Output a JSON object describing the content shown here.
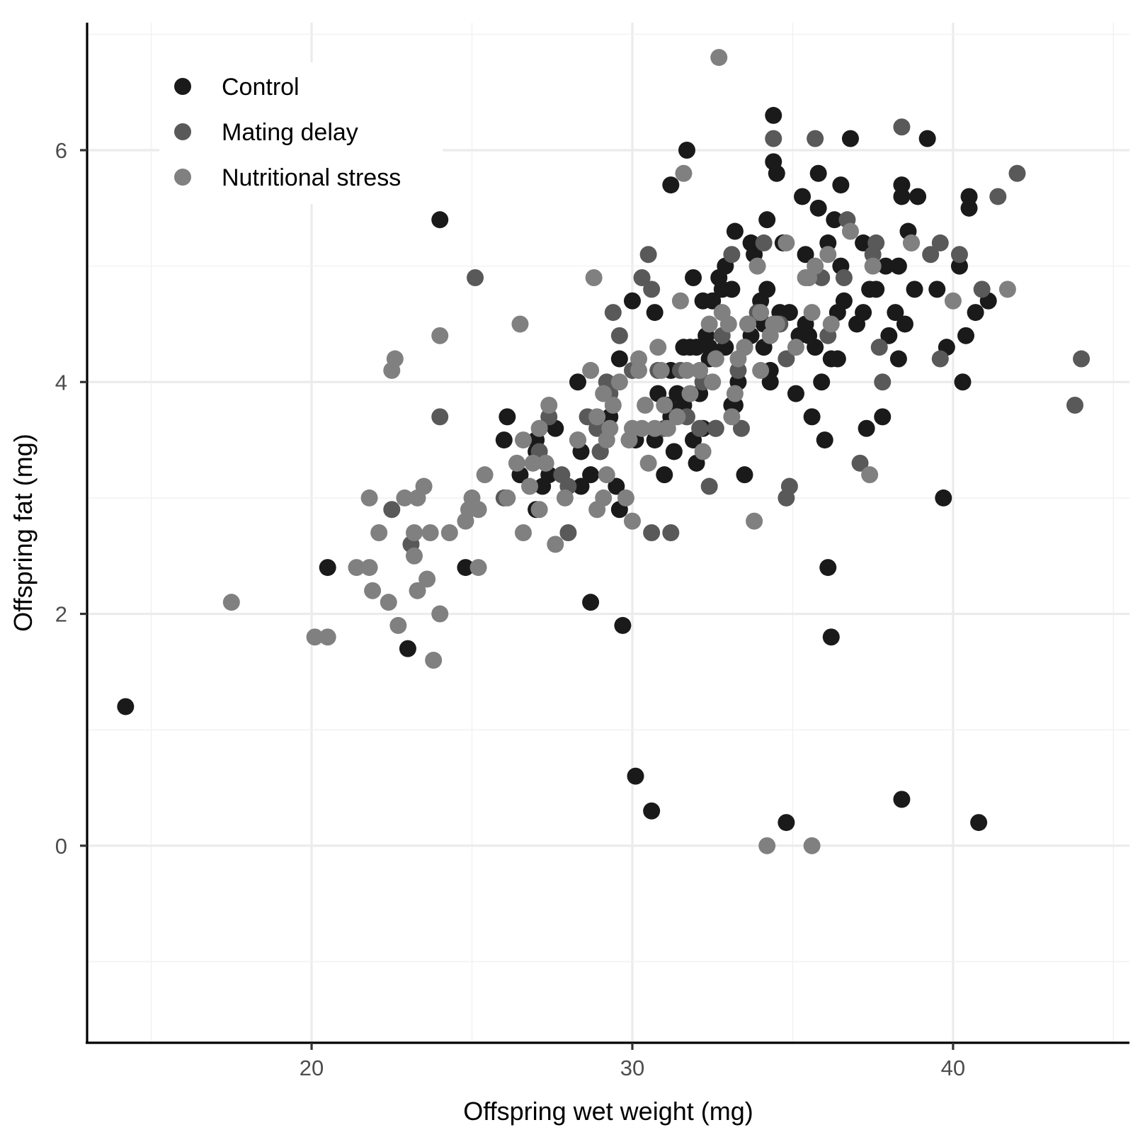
{
  "chart_data": {
    "type": "scatter",
    "xlabel": "Offspring wet weight (mg)",
    "ylabel": "Offspring fat (mg)",
    "xlim": [
      13,
      45.5
    ],
    "ylim": [
      -1.7,
      7.1
    ],
    "x_ticks": [
      20,
      30,
      40
    ],
    "y_ticks": [
      0,
      2,
      4,
      6
    ],
    "grid": true,
    "legend_position": "top-left",
    "series": [
      {
        "name": "Control",
        "color": "#1a1a1a",
        "points": [
          [
            14.2,
            1.2
          ],
          [
            20.5,
            2.4
          ],
          [
            23,
            1.7
          ],
          [
            24,
            5.4
          ],
          [
            24.8,
            2.4
          ],
          [
            26,
            3.5
          ],
          [
            26.1,
            3.7
          ],
          [
            26.5,
            3.2
          ],
          [
            27,
            3.5
          ],
          [
            27,
            3.4
          ],
          [
            27,
            2.9
          ],
          [
            27.2,
            3.1
          ],
          [
            27.4,
            3.2
          ],
          [
            27.6,
            3.6
          ],
          [
            28.3,
            4.0
          ],
          [
            28.4,
            3.4
          ],
          [
            28.4,
            3.1
          ],
          [
            28.7,
            3.2
          ],
          [
            28.7,
            2.1
          ],
          [
            29,
            3.4
          ],
          [
            29.3,
            3.7
          ],
          [
            29.5,
            3.1
          ],
          [
            29.6,
            4.2
          ],
          [
            29.6,
            2.9
          ],
          [
            29.7,
            1.9
          ],
          [
            30,
            4.7
          ],
          [
            30.1,
            3.5
          ],
          [
            30.1,
            0.6
          ],
          [
            30.6,
            0.3
          ],
          [
            30.7,
            3.5
          ],
          [
            30.7,
            4.6
          ],
          [
            30.8,
            3.9
          ],
          [
            31,
            3.2
          ],
          [
            31.1,
            3.8
          ],
          [
            31.2,
            3.7
          ],
          [
            31.2,
            4.1
          ],
          [
            31.2,
            5.7
          ],
          [
            31.3,
            3.4
          ],
          [
            31.4,
            3.9
          ],
          [
            31.6,
            4.3
          ],
          [
            31.7,
            6.0
          ],
          [
            31.8,
            4.3
          ],
          [
            31.9,
            4.9
          ],
          [
            31.9,
            3.5
          ],
          [
            32,
            4.3
          ],
          [
            32,
            3.3
          ],
          [
            32.1,
            3.9
          ],
          [
            32.2,
            4.7
          ],
          [
            32.2,
            3.6
          ],
          [
            32.3,
            4.4
          ],
          [
            32.4,
            4.2
          ],
          [
            32.4,
            4.3
          ],
          [
            32.5,
            4.7
          ],
          [
            32.6,
            4.2
          ],
          [
            32.7,
            4.9
          ],
          [
            32.8,
            4.8
          ],
          [
            32.9,
            5.0
          ],
          [
            32.9,
            4.3
          ],
          [
            33.1,
            3.8
          ],
          [
            33.1,
            4.8
          ],
          [
            33.2,
            3.8
          ],
          [
            33.2,
            5.3
          ],
          [
            33.3,
            4.0
          ],
          [
            33.5,
            3.2
          ],
          [
            33.7,
            5.2
          ],
          [
            33.7,
            4.4
          ],
          [
            33.8,
            5.1
          ],
          [
            34,
            4.7
          ],
          [
            34.1,
            4.5
          ],
          [
            34.1,
            4.3
          ],
          [
            34.2,
            5.4
          ],
          [
            34.2,
            4.8
          ],
          [
            34.3,
            4.0
          ],
          [
            34.3,
            4.1
          ],
          [
            34.4,
            6.3
          ],
          [
            34.4,
            5.9
          ],
          [
            34.5,
            5.8
          ],
          [
            34.6,
            4.6
          ],
          [
            34.7,
            5.2
          ],
          [
            34.9,
            4.6
          ],
          [
            35.1,
            3.9
          ],
          [
            35.3,
            5.6
          ],
          [
            35.4,
            5.1
          ],
          [
            35.4,
            4.5
          ],
          [
            35.5,
            4.4
          ],
          [
            35.6,
            3.7
          ],
          [
            35.7,
            4.3
          ],
          [
            35.8,
            5.5
          ],
          [
            35.8,
            5.8
          ],
          [
            35.9,
            4.0
          ],
          [
            36,
            3.5
          ],
          [
            36.1,
            5.2
          ],
          [
            36.1,
            2.4
          ],
          [
            36.2,
            1.8
          ],
          [
            36.2,
            4.2
          ],
          [
            36.3,
            5.4
          ],
          [
            36.4,
            4.6
          ],
          [
            36.5,
            5.0
          ],
          [
            36.5,
            5.7
          ],
          [
            36.6,
            4.7
          ],
          [
            36.8,
            6.1
          ],
          [
            37,
            4.5
          ],
          [
            37.2,
            4.6
          ],
          [
            37.2,
            5.2
          ],
          [
            37.3,
            3.6
          ],
          [
            37.4,
            4.8
          ],
          [
            37.6,
            4.8
          ],
          [
            37.8,
            3.7
          ],
          [
            37.9,
            5.0
          ],
          [
            38,
            4.4
          ],
          [
            38.2,
            4.6
          ],
          [
            38.3,
            4.2
          ],
          [
            38.4,
            5.7
          ],
          [
            38.4,
            5.6
          ],
          [
            38.5,
            4.5
          ],
          [
            38.6,
            5.3
          ],
          [
            38.4,
            0.4
          ],
          [
            38.8,
            4.8
          ],
          [
            38.9,
            5.6
          ],
          [
            39.2,
            6.1
          ],
          [
            39.5,
            4.8
          ],
          [
            39.7,
            3.0
          ],
          [
            39.8,
            4.3
          ],
          [
            40.2,
            5.0
          ],
          [
            40.3,
            4.0
          ],
          [
            40.4,
            4.4
          ],
          [
            40.5,
            5.6
          ],
          [
            40.5,
            5.5
          ],
          [
            40.7,
            4.6
          ],
          [
            40.8,
            0.2
          ],
          [
            41.1,
            4.7
          ],
          [
            34.8,
            0.2
          ],
          [
            38.3,
            5.0
          ],
          [
            36.4,
            4.2
          ],
          [
            35.2,
            4.4
          ],
          [
            33.5,
            4.3
          ],
          [
            31.6,
            3.8
          ],
          [
            32.6,
            3.6
          ]
        ]
      },
      {
        "name": "Mating delay",
        "color": "#595959",
        "points": [
          [
            22.5,
            2.9
          ],
          [
            23.1,
            2.6
          ],
          [
            24,
            3.7
          ],
          [
            25.1,
            4.9
          ],
          [
            26,
            3.0
          ],
          [
            27.1,
            3.4
          ],
          [
            27.4,
            3.7
          ],
          [
            27.8,
            3.2
          ],
          [
            28,
            2.7
          ],
          [
            28,
            3.1
          ],
          [
            28.3,
            3.5
          ],
          [
            28.6,
            3.7
          ],
          [
            28.9,
            3.6
          ],
          [
            29,
            3.4
          ],
          [
            29.2,
            4.0
          ],
          [
            29.3,
            3.9
          ],
          [
            29.4,
            4.6
          ],
          [
            29.6,
            4.4
          ],
          [
            30,
            4.1
          ],
          [
            30.3,
            4.9
          ],
          [
            30.5,
            5.1
          ],
          [
            30.6,
            4.8
          ],
          [
            30.6,
            2.7
          ],
          [
            30.8,
            4.1
          ],
          [
            31,
            3.6
          ],
          [
            31.2,
            2.7
          ],
          [
            31.5,
            4.1
          ],
          [
            31.7,
            3.7
          ],
          [
            32.1,
            3.6
          ],
          [
            32.2,
            4.0
          ],
          [
            32.4,
            3.1
          ],
          [
            32.6,
            3.6
          ],
          [
            32.8,
            4.4
          ],
          [
            33.1,
            5.1
          ],
          [
            33.3,
            4.1
          ],
          [
            33.4,
            3.6
          ],
          [
            33.6,
            4.5
          ],
          [
            33.9,
            4.6
          ],
          [
            34.1,
            5.2
          ],
          [
            34.4,
            6.1
          ],
          [
            34.6,
            4.5
          ],
          [
            34.8,
            4.2
          ],
          [
            34.9,
            3.1
          ],
          [
            34.8,
            3.0
          ],
          [
            35.7,
            6.1
          ],
          [
            35.9,
            4.9
          ],
          [
            36.1,
            4.4
          ],
          [
            36.6,
            4.9
          ],
          [
            36.7,
            5.4
          ],
          [
            37.1,
            3.3
          ],
          [
            37.5,
            5.1
          ],
          [
            37.6,
            5.2
          ],
          [
            37.8,
            4.0
          ],
          [
            37.7,
            4.3
          ],
          [
            38.4,
            6.2
          ],
          [
            38.7,
            5.2
          ],
          [
            39.3,
            5.1
          ],
          [
            39.6,
            4.2
          ],
          [
            39.6,
            5.2
          ],
          [
            40.2,
            5.1
          ],
          [
            40.9,
            4.8
          ],
          [
            41.4,
            5.6
          ],
          [
            42,
            5.8
          ],
          [
            43.8,
            3.8
          ],
          [
            44,
            4.2
          ]
        ]
      },
      {
        "name": "Nutritional stress",
        "color": "#808080",
        "points": [
          [
            17.5,
            2.1
          ],
          [
            20.1,
            1.8
          ],
          [
            20.5,
            1.8
          ],
          [
            21.4,
            2.4
          ],
          [
            21.8,
            2.4
          ],
          [
            21.8,
            3.0
          ],
          [
            21.9,
            2.2
          ],
          [
            22.1,
            2.7
          ],
          [
            22.4,
            2.1
          ],
          [
            22.5,
            4.1
          ],
          [
            22.6,
            4.2
          ],
          [
            22.7,
            1.9
          ],
          [
            22.9,
            3.0
          ],
          [
            23.2,
            2.7
          ],
          [
            23.2,
            2.5
          ],
          [
            23.3,
            3.0
          ],
          [
            23.3,
            2.2
          ],
          [
            23.5,
            3.1
          ],
          [
            23.6,
            2.3
          ],
          [
            23.7,
            2.7
          ],
          [
            23.8,
            1.6
          ],
          [
            24,
            4.4
          ],
          [
            24,
            2.0
          ],
          [
            24.3,
            2.7
          ],
          [
            24.8,
            2.8
          ],
          [
            24.9,
            2.9
          ],
          [
            25,
            3.0
          ],
          [
            25.2,
            2.4
          ],
          [
            25.2,
            2.9
          ],
          [
            25.4,
            3.2
          ],
          [
            26.1,
            3.0
          ],
          [
            26.4,
            3.3
          ],
          [
            26.5,
            4.5
          ],
          [
            26.6,
            3.5
          ],
          [
            26.6,
            2.7
          ],
          [
            26.8,
            3.1
          ],
          [
            26.9,
            3.3
          ],
          [
            27.1,
            3.6
          ],
          [
            27.1,
            2.9
          ],
          [
            27.3,
            3.3
          ],
          [
            27.4,
            3.8
          ],
          [
            27.6,
            2.6
          ],
          [
            27.9,
            3.0
          ],
          [
            28.3,
            3.5
          ],
          [
            28.7,
            4.1
          ],
          [
            28.8,
            4.9
          ],
          [
            28.9,
            2.9
          ],
          [
            28.9,
            3.7
          ],
          [
            29.1,
            3.9
          ],
          [
            29.1,
            3.0
          ],
          [
            29.2,
            3.5
          ],
          [
            29.3,
            3.6
          ],
          [
            29.6,
            4.0
          ],
          [
            29.8,
            3.0
          ],
          [
            29.9,
            3.5
          ],
          [
            30,
            3.6
          ],
          [
            30,
            2.8
          ],
          [
            30.2,
            4.1
          ],
          [
            30.2,
            4.2
          ],
          [
            30.3,
            3.6
          ],
          [
            30.4,
            3.8
          ],
          [
            30.5,
            3.3
          ],
          [
            30.7,
            3.6
          ],
          [
            30.8,
            4.3
          ],
          [
            30.9,
            4.1
          ],
          [
            31.1,
            3.6
          ],
          [
            31.4,
            3.7
          ],
          [
            31.5,
            4.7
          ],
          [
            31.6,
            5.8
          ],
          [
            31.7,
            4.1
          ],
          [
            31.8,
            3.9
          ],
          [
            32.1,
            4.1
          ],
          [
            32.2,
            3.4
          ],
          [
            32.4,
            4.5
          ],
          [
            32.5,
            4.0
          ],
          [
            32.6,
            4.2
          ],
          [
            32.7,
            6.8
          ],
          [
            32.8,
            4.6
          ],
          [
            33,
            4.5
          ],
          [
            33.1,
            3.7
          ],
          [
            33.3,
            4.2
          ],
          [
            33.5,
            4.3
          ],
          [
            33.6,
            4.5
          ],
          [
            33.8,
            2.8
          ],
          [
            33.9,
            5.0
          ],
          [
            34,
            4.6
          ],
          [
            34,
            4.1
          ],
          [
            34.2,
            0.0
          ],
          [
            34.3,
            4.4
          ],
          [
            34.5,
            4.5
          ],
          [
            34.8,
            5.2
          ],
          [
            35.1,
            4.3
          ],
          [
            35.4,
            4.9
          ],
          [
            35.5,
            4.9
          ],
          [
            35.6,
            4.6
          ],
          [
            35.6,
            0.0
          ],
          [
            35.7,
            5.0
          ],
          [
            36.1,
            5.1
          ],
          [
            36.8,
            5.3
          ],
          [
            37.4,
            3.2
          ],
          [
            37.5,
            5.0
          ],
          [
            38.7,
            5.2
          ],
          [
            40,
            4.7
          ],
          [
            41.7,
            4.8
          ],
          [
            29.4,
            3.8
          ],
          [
            29.2,
            3.2
          ],
          [
            31.0,
            3.8
          ],
          [
            33.2,
            3.9
          ],
          [
            34.4,
            4.5
          ],
          [
            36.2,
            4.5
          ]
        ]
      }
    ]
  }
}
